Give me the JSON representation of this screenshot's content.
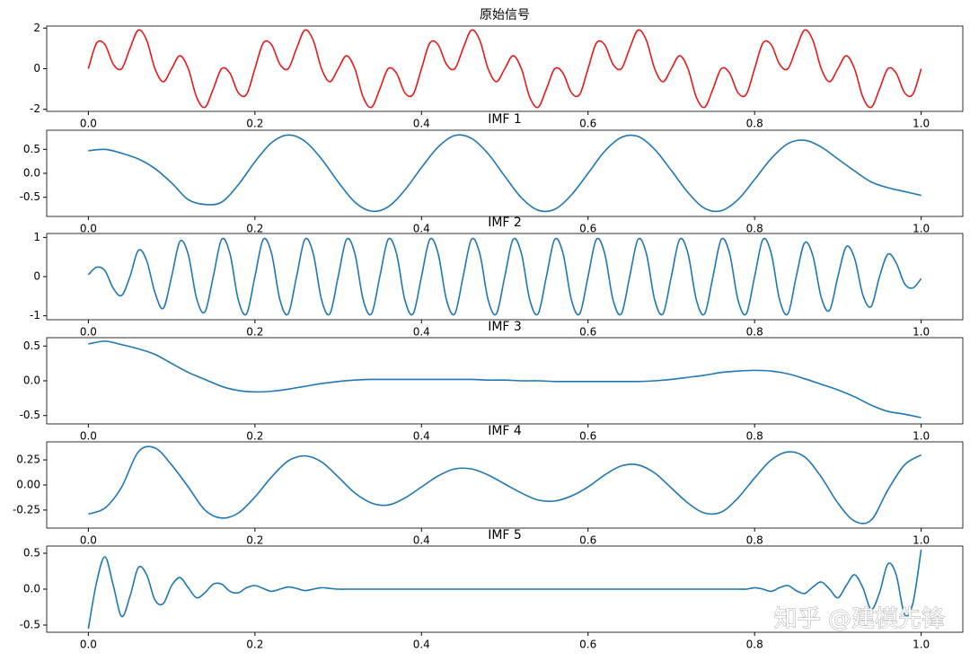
{
  "chart_data": [
    {
      "type": "line",
      "title": "原始信号",
      "color": "#e31a1c",
      "x": [
        0,
        0.01,
        0.02,
        0.03,
        0.04,
        0.05,
        0.06,
        0.07,
        0.08,
        0.09,
        0.1,
        0.11,
        0.12,
        0.13,
        0.14,
        0.15,
        0.16,
        0.17,
        0.18,
        0.19,
        0.2,
        0.21,
        0.22,
        0.23,
        0.24,
        0.25,
        0.26,
        0.27,
        0.28,
        0.29,
        0.3,
        0.31,
        0.32,
        0.33,
        0.34,
        0.35,
        0.36,
        0.37,
        0.38,
        0.39,
        0.4,
        0.41,
        0.42,
        0.43,
        0.44,
        0.45,
        0.46,
        0.47,
        0.48,
        0.49,
        0.5,
        0.51,
        0.52,
        0.53,
        0.54,
        0.55,
        0.56,
        0.57,
        0.58,
        0.59,
        0.6,
        0.61,
        0.62,
        0.63,
        0.64,
        0.65,
        0.66,
        0.67,
        0.68,
        0.69,
        0.7,
        0.71,
        0.72,
        0.73,
        0.74,
        0.75,
        0.76,
        0.77,
        0.78,
        0.79,
        0.8,
        0.81,
        0.82,
        0.83,
        0.84,
        0.85,
        0.86,
        0.87,
        0.88,
        0.89,
        0.9,
        0.91,
        0.92,
        0.93,
        0.94,
        0.95,
        0.96,
        0.97,
        0.98,
        0.99,
        1
      ],
      "values": [
        0,
        1.26,
        1.18,
        0.22,
        0,
        1,
        1.9,
        1.4,
        0,
        -0.64,
        0,
        0.64,
        0,
        -1.4,
        -1.9,
        -1,
        0,
        -0.22,
        -1.18,
        -1.26,
        0,
        1.26,
        1.18,
        0.22,
        0,
        1,
        1.9,
        1.4,
        0,
        -0.64,
        0,
        0.64,
        0,
        -1.4,
        -1.9,
        -1,
        0,
        -0.22,
        -1.18,
        -1.26,
        0,
        1.26,
        1.18,
        0.22,
        0,
        1,
        1.9,
        1.4,
        0,
        -0.64,
        0,
        0.64,
        0,
        -1.4,
        -1.9,
        -1,
        0,
        -0.22,
        -1.18,
        -1.26,
        0,
        1.26,
        1.18,
        0.22,
        0,
        1,
        1.9,
        1.4,
        0,
        -0.64,
        0,
        0.64,
        0,
        -1.4,
        -1.9,
        -1,
        0,
        -0.22,
        -1.18,
        -1.26,
        0,
        1.26,
        1.18,
        0.22,
        0,
        1,
        1.9,
        1.4,
        0,
        -0.64,
        0,
        0.64,
        0,
        -1.4,
        -1.9,
        -1,
        0,
        -0.22,
        -1.18,
        -1.26,
        0
      ],
      "xlim": [
        -0.05,
        1.05
      ],
      "ylim": [
        -2.1,
        2.1
      ],
      "xticks": [
        {
          "value": 0,
          "label": "0.0"
        },
        0.2,
        0.4,
        0.6,
        0.8,
        {
          "value": 1,
          "label": "1.0"
        }
      ],
      "yticks": [
        -2,
        0,
        2
      ]
    },
    {
      "type": "line",
      "title": "IMF 1",
      "color": "#1f77b4",
      "x": [
        0,
        0.02,
        0.04,
        0.06,
        0.08,
        0.1,
        0.12,
        0.14,
        0.16,
        0.18,
        0.2,
        0.22,
        0.24,
        0.26,
        0.28,
        0.3,
        0.32,
        0.34,
        0.36,
        0.38,
        0.4,
        0.42,
        0.44,
        0.46,
        0.48,
        0.5,
        0.52,
        0.54,
        0.56,
        0.58,
        0.6,
        0.62,
        0.64,
        0.66,
        0.68,
        0.7,
        0.72,
        0.74,
        0.76,
        0.78,
        0.8,
        0.82,
        0.84,
        0.86,
        0.88,
        0.9,
        0.92,
        0.94,
        0.96,
        0.98,
        1
      ],
      "values": [
        0.47,
        0.5,
        0.42,
        0.3,
        0.1,
        -0.2,
        -0.55,
        -0.65,
        -0.6,
        -0.24,
        0.24,
        0.64,
        0.8,
        0.67,
        0.3,
        -0.18,
        -0.6,
        -0.79,
        -0.7,
        -0.35,
        0.12,
        0.55,
        0.79,
        0.73,
        0.41,
        -0.06,
        -0.51,
        -0.77,
        -0.75,
        -0.45,
        0,
        0.46,
        0.75,
        0.77,
        0.5,
        0.06,
        -0.4,
        -0.73,
        -0.78,
        -0.55,
        -0.13,
        0.31,
        0.62,
        0.69,
        0.55,
        0.3,
        0.05,
        -0.18,
        -0.3,
        -0.38,
        -0.46
      ],
      "xlim": [
        -0.05,
        1.05
      ],
      "ylim": [
        -0.9,
        0.9
      ],
      "xticks": [
        {
          "value": 0,
          "label": "0.0"
        },
        0.2,
        0.4,
        0.6,
        0.8,
        {
          "value": 1,
          "label": "1.0"
        }
      ],
      "yticks": [
        -0.5,
        {
          "value": 0,
          "label": "0.0"
        },
        0.5
      ]
    },
    {
      "type": "line",
      "title": "IMF 2",
      "color": "#1f77b4",
      "x": [
        0,
        0.01,
        0.02,
        0.03,
        0.04,
        0.05,
        0.06,
        0.07,
        0.08,
        0.09,
        0.1,
        0.11,
        0.12,
        0.13,
        0.14,
        0.15,
        0.16,
        0.17,
        0.18,
        0.19,
        0.2,
        0.21,
        0.22,
        0.23,
        0.24,
        0.25,
        0.26,
        0.27,
        0.28,
        0.29,
        0.3,
        0.31,
        0.32,
        0.33,
        0.34,
        0.35,
        0.36,
        0.37,
        0.38,
        0.39,
        0.4,
        0.41,
        0.42,
        0.43,
        0.44,
        0.45,
        0.46,
        0.47,
        0.48,
        0.49,
        0.5,
        0.51,
        0.52,
        0.53,
        0.54,
        0.55,
        0.56,
        0.57,
        0.58,
        0.59,
        0.6,
        0.61,
        0.62,
        0.63,
        0.64,
        0.65,
        0.66,
        0.67,
        0.68,
        0.69,
        0.7,
        0.71,
        0.72,
        0.73,
        0.74,
        0.75,
        0.76,
        0.77,
        0.78,
        0.79,
        0.8,
        0.81,
        0.82,
        0.83,
        0.84,
        0.85,
        0.86,
        0.87,
        0.88,
        0.89,
        0.9,
        0.91,
        0.92,
        0.93,
        0.94,
        0.95,
        0.96,
        0.97,
        0.98,
        0.99,
        1
      ],
      "values": [
        0.05,
        0.24,
        0.15,
        -0.3,
        -0.48,
        0,
        0.67,
        0.41,
        -0.41,
        -0.81,
        0,
        0.9,
        0.56,
        -0.56,
        -0.9,
        0,
        0.95,
        0.59,
        -0.59,
        -0.95,
        0,
        0.95,
        0.59,
        -0.59,
        -0.95,
        0,
        0.95,
        0.59,
        -0.59,
        -0.95,
        0,
        0.95,
        0.59,
        -0.59,
        -0.95,
        0,
        0.95,
        0.59,
        -0.59,
        -0.95,
        0,
        0.95,
        0.59,
        -0.59,
        -0.95,
        0,
        0.95,
        0.59,
        -0.59,
        -0.95,
        0,
        0.95,
        0.59,
        -0.59,
        -0.95,
        0,
        0.95,
        0.59,
        -0.59,
        -0.95,
        0,
        0.95,
        0.59,
        -0.59,
        -0.95,
        0,
        0.95,
        0.59,
        -0.59,
        -0.95,
        0,
        0.95,
        0.59,
        -0.59,
        -0.95,
        0,
        0.95,
        0.59,
        -0.59,
        -0.95,
        0,
        0.95,
        0.59,
        -0.59,
        -0.95,
        0,
        0.86,
        0.53,
        -0.53,
        -0.86,
        0,
        0.76,
        0.47,
        -0.47,
        -0.76,
        0,
        0.57,
        0.35,
        -0.18,
        -0.29,
        -0.05
      ],
      "xlim": [
        -0.05,
        1.05
      ],
      "ylim": [
        -1.1,
        1.1
      ],
      "xticks": [
        {
          "value": 0,
          "label": "0.0"
        },
        0.2,
        0.4,
        0.6,
        0.8,
        {
          "value": 1,
          "label": "1.0"
        }
      ],
      "yticks": [
        -1,
        0,
        1
      ]
    },
    {
      "type": "line",
      "title": "IMF 3",
      "color": "#1f77b4",
      "x": [
        0,
        0.02,
        0.04,
        0.06,
        0.08,
        0.1,
        0.12,
        0.14,
        0.16,
        0.18,
        0.2,
        0.22,
        0.24,
        0.26,
        0.28,
        0.3,
        0.32,
        0.34,
        0.36,
        0.38,
        0.4,
        0.42,
        0.44,
        0.46,
        0.48,
        0.5,
        0.52,
        0.54,
        0.56,
        0.58,
        0.6,
        0.62,
        0.64,
        0.66,
        0.68,
        0.7,
        0.72,
        0.74,
        0.76,
        0.78,
        0.8,
        0.82,
        0.84,
        0.86,
        0.88,
        0.9,
        0.92,
        0.94,
        0.96,
        0.98,
        1
      ],
      "values": [
        0.53,
        0.57,
        0.52,
        0.46,
        0.38,
        0.25,
        0.12,
        0.02,
        -0.08,
        -0.14,
        -0.16,
        -0.15,
        -0.12,
        -0.08,
        -0.04,
        -0.01,
        0.01,
        0.02,
        0.02,
        0.02,
        0.02,
        0.02,
        0.02,
        0.02,
        0.01,
        0.01,
        0,
        0,
        -0.01,
        -0.01,
        -0.01,
        -0.01,
        -0.01,
        -0.01,
        0,
        0.02,
        0.05,
        0.08,
        0.12,
        0.14,
        0.15,
        0.14,
        0.1,
        0.03,
        -0.05,
        -0.13,
        -0.23,
        -0.35,
        -0.44,
        -0.48,
        -0.53
      ],
      "xlim": [
        -0.05,
        1.05
      ],
      "ylim": [
        -0.62,
        0.62
      ],
      "xticks": [
        {
          "value": 0,
          "label": "0.0"
        },
        0.2,
        0.4,
        0.6,
        0.8,
        {
          "value": 1,
          "label": "1.0"
        }
      ],
      "yticks": [
        -0.5,
        {
          "value": 0,
          "label": "0.0"
        },
        0.5
      ]
    },
    {
      "type": "line",
      "title": "IMF 4",
      "color": "#1f77b4",
      "x": [
        0,
        0.02,
        0.04,
        0.06,
        0.08,
        0.1,
        0.12,
        0.14,
        0.16,
        0.18,
        0.2,
        0.22,
        0.24,
        0.26,
        0.28,
        0.3,
        0.32,
        0.34,
        0.36,
        0.38,
        0.4,
        0.42,
        0.44,
        0.46,
        0.48,
        0.5,
        0.52,
        0.54,
        0.56,
        0.58,
        0.6,
        0.62,
        0.64,
        0.66,
        0.68,
        0.7,
        0.72,
        0.74,
        0.76,
        0.78,
        0.8,
        0.82,
        0.84,
        0.86,
        0.88,
        0.9,
        0.92,
        0.94,
        0.96,
        0.98,
        1
      ],
      "values": [
        -0.29,
        -0.23,
        -0.02,
        0.33,
        0.37,
        0.2,
        -0.02,
        -0.25,
        -0.33,
        -0.28,
        -0.12,
        0.08,
        0.24,
        0.29,
        0.23,
        0.08,
        -0.08,
        -0.18,
        -0.2,
        -0.13,
        -0.02,
        0.09,
        0.16,
        0.16,
        0.1,
        0.01,
        -0.08,
        -0.15,
        -0.16,
        -0.11,
        -0.02,
        0.1,
        0.19,
        0.2,
        0.12,
        -0.03,
        -0.18,
        -0.28,
        -0.27,
        -0.13,
        0.07,
        0.25,
        0.33,
        0.28,
        0.08,
        -0.18,
        -0.36,
        -0.35,
        -0.05,
        0.2,
        0.3
      ],
      "xlim": [
        -0.05,
        1.05
      ],
      "ylim": [
        -0.43,
        0.43
      ],
      "xticks": [
        {
          "value": 0,
          "label": "0.0"
        },
        0.2,
        0.4,
        0.6,
        0.8,
        {
          "value": 1,
          "label": "1.0"
        }
      ],
      "yticks": [
        -0.25,
        {
          "value": 0,
          "label": "0.00"
        },
        0.25
      ]
    },
    {
      "type": "line",
      "title": "IMF 5",
      "color": "#1f77b4",
      "x": [
        0,
        0.01,
        0.02,
        0.03,
        0.04,
        0.05,
        0.06,
        0.07,
        0.08,
        0.09,
        0.1,
        0.11,
        0.12,
        0.13,
        0.14,
        0.15,
        0.16,
        0.17,
        0.18,
        0.19,
        0.2,
        0.21,
        0.22,
        0.23,
        0.24,
        0.25,
        0.26,
        0.27,
        0.28,
        0.29,
        0.3,
        0.31,
        0.32,
        0.33,
        0.34,
        0.35,
        0.36,
        0.37,
        0.38,
        0.39,
        0.4,
        0.41,
        0.42,
        0.43,
        0.44,
        0.45,
        0.46,
        0.47,
        0.48,
        0.49,
        0.5,
        0.51,
        0.52,
        0.53,
        0.54,
        0.55,
        0.56,
        0.57,
        0.58,
        0.59,
        0.6,
        0.61,
        0.62,
        0.63,
        0.64,
        0.65,
        0.66,
        0.67,
        0.68,
        0.69,
        0.7,
        0.71,
        0.72,
        0.73,
        0.74,
        0.75,
        0.76,
        0.77,
        0.78,
        0.79,
        0.8,
        0.81,
        0.82,
        0.83,
        0.84,
        0.85,
        0.86,
        0.87,
        0.88,
        0.89,
        0.9,
        0.91,
        0.92,
        0.93,
        0.94,
        0.95,
        0.96,
        0.97,
        0.98,
        0.99,
        1
      ],
      "values": [
        -0.55,
        0.1,
        0.45,
        0.05,
        -0.38,
        -0.1,
        0.3,
        0.2,
        -0.15,
        -0.2,
        0.05,
        0.16,
        0.02,
        -0.12,
        -0.05,
        0.07,
        0.07,
        -0.03,
        -0.05,
        0.02,
        0.05,
        0.01,
        -0.03,
        0,
        0.03,
        0.01,
        -0.02,
        0,
        0.02,
        0.01,
        0,
        0,
        0,
        0,
        0,
        0,
        0,
        0,
        0,
        0,
        0,
        0,
        0,
        0,
        0,
        0,
        0,
        0,
        0,
        0,
        0,
        0,
        0,
        0,
        0,
        0,
        0,
        0,
        0,
        0,
        0,
        0,
        0,
        0,
        0,
        0,
        0,
        0,
        0,
        0,
        0,
        0,
        0,
        0,
        0,
        0,
        0,
        0,
        0,
        0,
        0.02,
        0,
        -0.03,
        0.02,
        0.05,
        -0.02,
        -0.06,
        0.03,
        0.1,
        0,
        -0.12,
        0.05,
        0.2,
        0.02,
        -0.28,
        -0.05,
        0.35,
        0.2,
        -0.35,
        -0.2,
        0.55
      ],
      "xlim": [
        -0.05,
        1.05
      ],
      "ylim": [
        -0.6,
        0.6
      ],
      "xticks": [
        {
          "value": 0,
          "label": "0.0"
        },
        0.2,
        0.4,
        0.6,
        0.8,
        {
          "value": 1,
          "label": "1.0"
        }
      ],
      "yticks": [
        -0.5,
        {
          "value": 0,
          "label": "0.0"
        },
        0.5
      ]
    }
  ],
  "watermark": "知乎 @建模先锋"
}
